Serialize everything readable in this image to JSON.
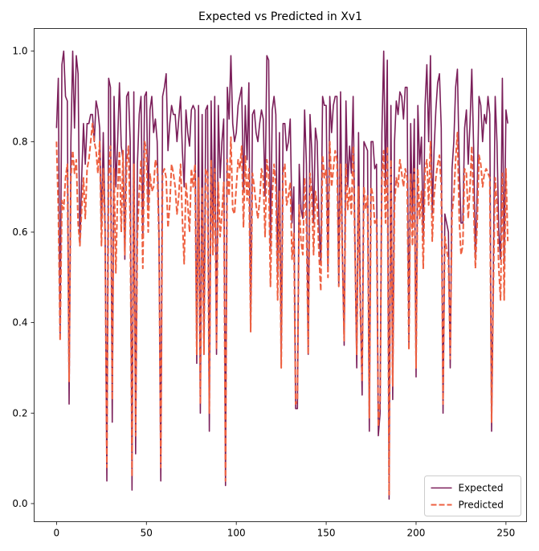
{
  "chart_data": {
    "type": "line",
    "title": "Expected vs Predicted in Xv1",
    "xlabel": "",
    "ylabel": "",
    "xlim": [
      -12.45,
      261.45
    ],
    "ylim": [
      -0.04,
      1.05
    ],
    "xticks": [
      0,
      50,
      100,
      150,
      200,
      250
    ],
    "yticks": [
      0.0,
      0.2,
      0.4,
      0.6,
      0.8,
      1.0
    ],
    "grid": false,
    "legend": "lower-right",
    "series": [
      {
        "name": "Expected",
        "color": "#7b1f5a",
        "style": "solid",
        "values": [
          0.83,
          0.94,
          0.37,
          0.97,
          1.0,
          0.9,
          0.89,
          0.22,
          0.8,
          1.0,
          0.83,
          0.99,
          0.95,
          0.57,
          0.72,
          0.84,
          0.75,
          0.84,
          0.84,
          0.86,
          0.86,
          0.8,
          0.89,
          0.87,
          0.83,
          0.61,
          0.82,
          0.62,
          0.05,
          0.94,
          0.92,
          0.18,
          0.9,
          0.7,
          0.8,
          0.93,
          0.79,
          0.76,
          0.54,
          0.9,
          0.91,
          0.8,
          0.03,
          0.91,
          0.11,
          0.75,
          0.86,
          0.9,
          0.59,
          0.9,
          0.91,
          0.66,
          0.87,
          0.9,
          0.82,
          0.85,
          0.8,
          0.6,
          0.05,
          0.9,
          0.92,
          0.95,
          0.78,
          0.84,
          0.88,
          0.86,
          0.86,
          0.8,
          0.85,
          0.9,
          0.78,
          0.7,
          0.87,
          0.82,
          0.79,
          0.87,
          0.88,
          0.87,
          0.31,
          0.88,
          0.2,
          0.86,
          0.33,
          0.87,
          0.88,
          0.16,
          0.89,
          0.58,
          0.9,
          0.33,
          0.88,
          0.72,
          0.8,
          0.85,
          0.04,
          0.92,
          0.85,
          0.99,
          0.84,
          0.8,
          0.82,
          0.88,
          0.9,
          0.92,
          0.69,
          0.88,
          0.76,
          0.93,
          0.38,
          0.86,
          0.87,
          0.82,
          0.8,
          0.84,
          0.87,
          0.85,
          0.68,
          0.99,
          0.98,
          0.56,
          0.87,
          0.9,
          0.86,
          0.5,
          0.82,
          0.31,
          0.84,
          0.84,
          0.78,
          0.8,
          0.85,
          0.62,
          0.7,
          0.21,
          0.21,
          0.75,
          0.65,
          0.63,
          0.87,
          0.75,
          0.33,
          0.86,
          0.78,
          0.62,
          0.83,
          0.8,
          0.62,
          0.53,
          0.9,
          0.88,
          0.88,
          0.52,
          0.9,
          0.82,
          0.88,
          0.9,
          0.9,
          0.48,
          0.91,
          0.56,
          0.35,
          0.89,
          0.7,
          0.79,
          0.73,
          0.9,
          0.58,
          0.3,
          0.82,
          0.45,
          0.24,
          0.8,
          0.79,
          0.78,
          0.16,
          0.8,
          0.8,
          0.74,
          0.75,
          0.15,
          0.2,
          0.82,
          1.0,
          0.7,
          0.98,
          0.01,
          0.88,
          0.23,
          0.8,
          0.89,
          0.86,
          0.91,
          0.9,
          0.85,
          0.92,
          0.92,
          0.35,
          0.84,
          0.62,
          0.85,
          0.28,
          0.88,
          0.75,
          0.81,
          0.58,
          0.88,
          0.97,
          0.8,
          0.99,
          0.64,
          0.78,
          0.87,
          0.93,
          0.95,
          0.83,
          0.2,
          0.64,
          0.62,
          0.6,
          0.3,
          0.74,
          0.8,
          0.92,
          0.96,
          0.75,
          0.62,
          0.62,
          0.83,
          0.87,
          0.75,
          0.84,
          0.96,
          0.79,
          0.54,
          0.69,
          0.9,
          0.88,
          0.8,
          0.86,
          0.84,
          0.9,
          0.86,
          0.16,
          0.53,
          0.9,
          0.8,
          0.6,
          0.54,
          0.94,
          0.53,
          0.87,
          0.84
        ]
      },
      {
        "name": "Predicted",
        "color": "#ee6040",
        "style": "dashed",
        "values": [
          0.8,
          0.65,
          0.36,
          0.67,
          0.65,
          0.72,
          0.75,
          0.27,
          0.72,
          0.78,
          0.73,
          0.76,
          0.62,
          0.57,
          0.65,
          0.72,
          0.63,
          0.74,
          0.76,
          0.8,
          0.84,
          0.8,
          0.78,
          0.73,
          0.8,
          0.57,
          0.74,
          0.6,
          0.08,
          0.72,
          0.79,
          0.23,
          0.74,
          0.51,
          0.69,
          0.78,
          0.6,
          0.78,
          0.55,
          0.75,
          0.79,
          0.62,
          0.06,
          0.75,
          0.15,
          0.59,
          0.69,
          0.76,
          0.52,
          0.8,
          0.78,
          0.6,
          0.73,
          0.69,
          0.7,
          0.76,
          0.74,
          0.58,
          0.08,
          0.73,
          0.74,
          0.72,
          0.61,
          0.66,
          0.75,
          0.73,
          0.7,
          0.64,
          0.68,
          0.75,
          0.63,
          0.53,
          0.71,
          0.66,
          0.6,
          0.74,
          0.7,
          0.75,
          0.33,
          0.72,
          0.22,
          0.7,
          0.33,
          0.74,
          0.73,
          0.2,
          0.76,
          0.55,
          0.74,
          0.34,
          0.71,
          0.59,
          0.64,
          0.71,
          0.05,
          0.76,
          0.68,
          0.81,
          0.65,
          0.64,
          0.7,
          0.76,
          0.74,
          0.79,
          0.61,
          0.77,
          0.67,
          0.74,
          0.38,
          0.73,
          0.7,
          0.66,
          0.63,
          0.67,
          0.74,
          0.72,
          0.59,
          0.76,
          0.73,
          0.48,
          0.68,
          0.75,
          0.7,
          0.45,
          0.69,
          0.3,
          0.73,
          0.75,
          0.66,
          0.68,
          0.71,
          0.54,
          0.6,
          0.22,
          0.23,
          0.66,
          0.58,
          0.55,
          0.72,
          0.62,
          0.33,
          0.73,
          0.68,
          0.55,
          0.69,
          0.66,
          0.55,
          0.47,
          0.77,
          0.72,
          0.74,
          0.5,
          0.8,
          0.7,
          0.74,
          0.78,
          0.76,
          0.48,
          0.75,
          0.55,
          0.36,
          0.75,
          0.65,
          0.7,
          0.64,
          0.79,
          0.56,
          0.33,
          0.7,
          0.42,
          0.27,
          0.7,
          0.65,
          0.68,
          0.19,
          0.7,
          0.68,
          0.62,
          0.63,
          0.17,
          0.23,
          0.72,
          0.78,
          0.62,
          0.79,
          0.02,
          0.76,
          0.26,
          0.66,
          0.72,
          0.7,
          0.76,
          0.73,
          0.7,
          0.74,
          0.72,
          0.34,
          0.73,
          0.57,
          0.74,
          0.3,
          0.74,
          0.63,
          0.69,
          0.52,
          0.74,
          0.76,
          0.66,
          0.8,
          0.58,
          0.68,
          0.72,
          0.75,
          0.77,
          0.7,
          0.22,
          0.59,
          0.56,
          0.54,
          0.32,
          0.64,
          0.68,
          0.76,
          0.82,
          0.63,
          0.55,
          0.57,
          0.74,
          0.73,
          0.63,
          0.7,
          0.79,
          0.66,
          0.52,
          0.62,
          0.77,
          0.75,
          0.7,
          0.73,
          0.74,
          0.73,
          0.72,
          0.18,
          0.48,
          0.72,
          0.66,
          0.52,
          0.45,
          0.73,
          0.45,
          0.74,
          0.58
        ]
      }
    ]
  }
}
